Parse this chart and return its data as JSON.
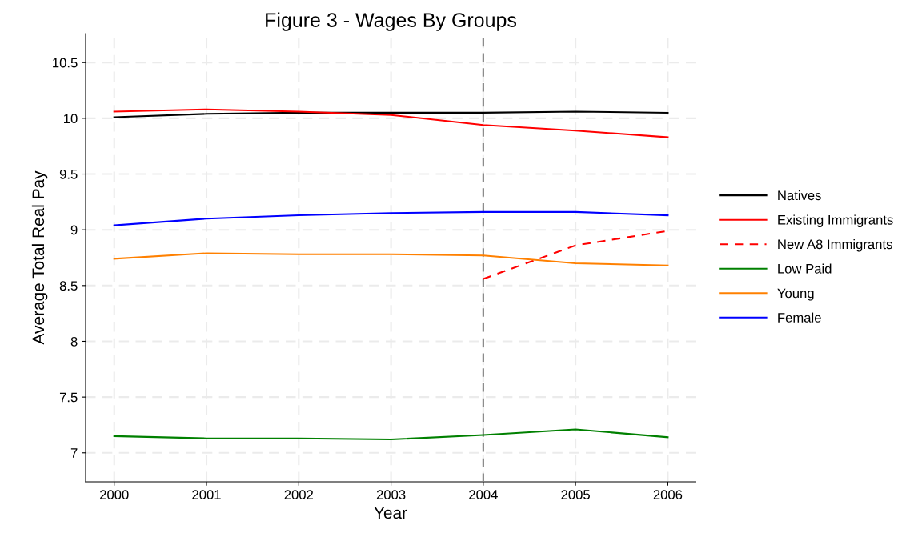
{
  "chart_data": {
    "type": "line",
    "title": "Figure 3 - Wages By Groups",
    "xlabel": "Year",
    "ylabel": "Average Total Real Pay",
    "x": [
      2000,
      2001,
      2002,
      2003,
      2004,
      2005,
      2006
    ],
    "xlim": [
      1999.69,
      2006.3
    ],
    "xticks": [
      2000,
      2001,
      2002,
      2003,
      2004,
      2005,
      2006
    ],
    "ylim": [
      6.74,
      10.76
    ],
    "yticks": [
      7,
      7.5,
      8,
      8.5,
      9,
      9.5,
      10,
      10.5
    ],
    "grid": true,
    "legend": "right",
    "marker": "none",
    "ref_lines": [
      {
        "axis": "x",
        "value": 2004,
        "color": "#808080",
        "line_style": "dashed"
      }
    ],
    "series": [
      {
        "name": "Natives",
        "color": "#000000",
        "values": [
          10.01,
          10.04,
          10.05,
          10.05,
          10.05,
          10.06,
          10.05
        ]
      },
      {
        "name": "Existing Immigrants",
        "color": "#ff0000",
        "values": [
          10.06,
          10.08,
          10.06,
          10.03,
          9.94,
          9.89,
          9.83
        ]
      },
      {
        "name": "New A8 Immigrants",
        "color": "#ff0000",
        "line_style": "dashed",
        "values": [
          null,
          null,
          null,
          null,
          8.56,
          8.86,
          8.99
        ]
      },
      {
        "name": "Low Paid",
        "color": "#008000",
        "values": [
          7.15,
          7.13,
          7.13,
          7.12,
          7.16,
          7.21,
          7.14
        ]
      },
      {
        "name": "Young",
        "color": "#ff8000",
        "values": [
          8.74,
          8.79,
          8.78,
          8.78,
          8.77,
          8.7,
          8.68
        ]
      },
      {
        "name": "Female",
        "color": "#0000ff",
        "values": [
          9.04,
          9.1,
          9.13,
          9.15,
          9.16,
          9.16,
          9.13
        ]
      }
    ]
  }
}
